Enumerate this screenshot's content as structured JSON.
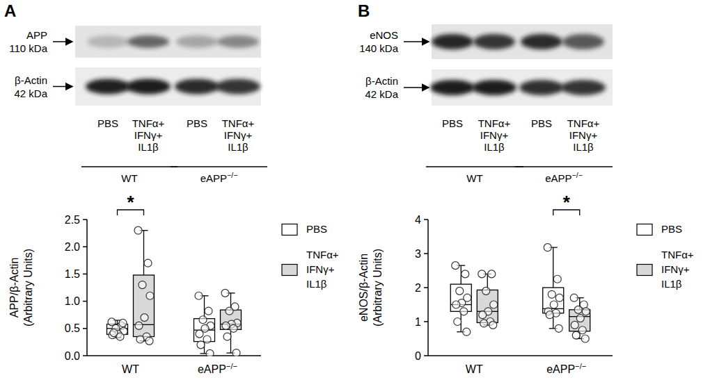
{
  "chart_data": [
    {
      "type": "box",
      "title": "A",
      "blot": {
        "rows": [
          {
            "label": "APP",
            "size": "110 kDa"
          },
          {
            "label": "β-Actin",
            "size": "42 kDa"
          }
        ],
        "lanes": [
          "PBS",
          "TNFα+ IFNγ+ IL1β",
          "PBS",
          "TNFα+ IFNγ+ IL1β"
        ],
        "groups": [
          "WT",
          "eAPP−/−"
        ]
      },
      "y_label": [
        "APP/β-Actin",
        "(Arbitrary Units)"
      ],
      "categories": [
        "WT",
        "eAPP−/−"
      ],
      "ylim": [
        0,
        2.5
      ],
      "yticks": [
        {
          "value": 0,
          "label": "0.0"
        },
        0.5,
        {
          "value": 1,
          "label": "1.0"
        },
        1.5,
        {
          "value": 2,
          "label": "2.0"
        },
        2.5
      ],
      "legend": "right",
      "series": [
        {
          "name": "PBS",
          "color": "#ffffff",
          "boxes": [
            {
              "min": 0.33,
              "q1": 0.39,
              "median": 0.5,
              "q3": 0.58,
              "max": 0.65
            },
            {
              "min": 0.04,
              "q1": 0.26,
              "median": 0.47,
              "q3": 0.68,
              "max": 1.1
            }
          ],
          "points": [
            [
              0.62,
              0.55,
              0.5,
              0.45,
              0.4,
              0.38,
              0.35,
              0.42,
              0.6
            ],
            [
              1.1,
              0.82,
              0.66,
              0.55,
              0.5,
              0.4,
              0.3,
              0.2,
              0.04
            ]
          ]
        },
        {
          "name": "TNFα+ IFNγ+ IL1β",
          "color": "#d9d9d9",
          "boxes": [
            {
              "min": 0.27,
              "q1": 0.35,
              "median": 0.57,
              "q3": 1.48,
              "max": 2.3
            },
            {
              "min": 0.05,
              "q1": 0.48,
              "median": 0.58,
              "q3": 0.84,
              "max": 1.15
            }
          ],
          "points": [
            [
              2.3,
              1.7,
              1.3,
              1.1,
              0.7,
              0.55,
              0.35,
              0.3,
              0.27
            ],
            [
              1.15,
              0.9,
              0.82,
              0.6,
              0.58,
              0.55,
              0.5,
              0.35,
              0.05
            ]
          ]
        }
      ],
      "annotations": [
        {
          "text": "*",
          "category": 0
        }
      ]
    },
    {
      "type": "box",
      "title": "B",
      "blot": {
        "rows": [
          {
            "label": "eNOS",
            "size": "140 kDa"
          },
          {
            "label": "β-Actin",
            "size": "42 kDa"
          }
        ],
        "lanes": [
          "PBS",
          "TNFα+ IFNγ+ IL1β",
          "PBS",
          "TNFα+ IFNγ+ IL1β"
        ],
        "groups": [
          "WT",
          "eAPP−/−"
        ]
      },
      "y_label": [
        "eNOS/β-Actin",
        "(Arbitrary Units)"
      ],
      "categories": [
        "WT",
        "eAPP−/−"
      ],
      "ylim": [
        0,
        4
      ],
      "yticks": [
        0,
        1,
        2,
        3,
        4
      ],
      "legend": "right",
      "series": [
        {
          "name": "PBS",
          "color": "#ffffff",
          "boxes": [
            {
              "min": 0.7,
              "q1": 1.3,
              "median": 1.5,
              "q3": 2.1,
              "max": 2.65
            },
            {
              "min": 0.8,
              "q1": 1.25,
              "median": 1.38,
              "q3": 2.0,
              "max": 3.18
            }
          ],
          "points": [
            [
              2.65,
              2.4,
              1.9,
              1.7,
              1.55,
              1.5,
              1.3,
              1.0,
              0.7
            ],
            [
              3.18,
              2.25,
              1.8,
              1.7,
              1.5,
              1.3,
              1.25,
              1.2,
              0.8
            ]
          ]
        },
        {
          "name": "TNFα+ IFNγ+ IL1β",
          "color": "#d9d9d9",
          "boxes": [
            {
              "min": 0.9,
              "q1": 0.97,
              "median": 1.3,
              "q3": 1.93,
              "max": 2.4
            },
            {
              "min": 0.5,
              "q1": 0.72,
              "median": 1.15,
              "q3": 1.35,
              "max": 1.7
            }
          ],
          "points": [
            [
              2.4,
              2.4,
              1.9,
              1.5,
              1.3,
              1.2,
              1.0,
              0.95,
              0.9
            ],
            [
              1.7,
              1.5,
              1.35,
              1.3,
              1.1,
              0.9,
              0.75,
              0.6,
              0.5
            ]
          ]
        }
      ],
      "annotations": [
        {
          "text": "*",
          "category": 1
        }
      ]
    }
  ]
}
